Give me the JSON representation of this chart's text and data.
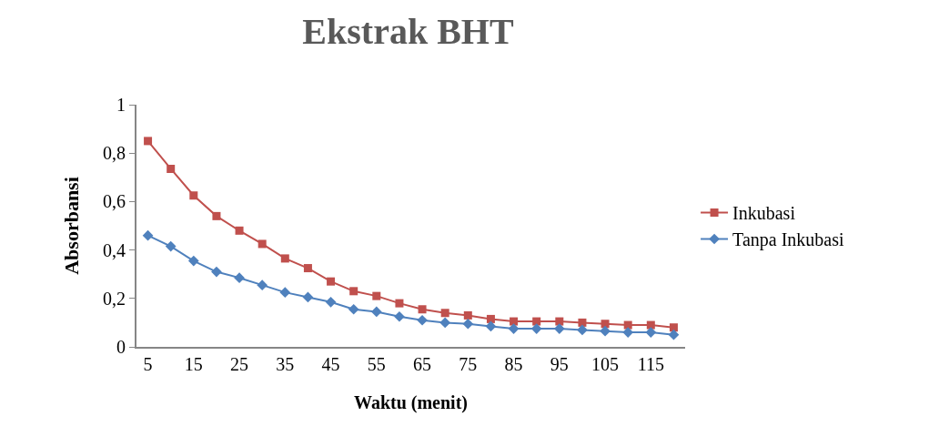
{
  "chart_data": {
    "type": "line",
    "title": "Ekstrak BHT",
    "xlabel": "Waktu (menit)",
    "ylabel": "Absorbansi",
    "categories": [
      "5",
      null,
      "15",
      null,
      "25",
      null,
      "35",
      null,
      "45",
      null,
      "55",
      null,
      "65",
      null,
      "75",
      null,
      "85",
      null,
      "95",
      null,
      "105",
      null,
      "115",
      null
    ],
    "series": [
      {
        "name": "Inkubasi",
        "color": "#c0504d",
        "marker": "square",
        "values": [
          0.85,
          0.735,
          0.625,
          0.54,
          0.48,
          0.425,
          0.365,
          0.325,
          0.27,
          0.23,
          0.21,
          0.18,
          0.155,
          0.14,
          0.13,
          0.115,
          0.105,
          0.105,
          0.105,
          0.1,
          0.095,
          0.09,
          0.09,
          0.08
        ]
      },
      {
        "name": "Tanpa Inkubasi",
        "color": "#4f81bd",
        "marker": "diamond",
        "values": [
          0.46,
          0.415,
          0.355,
          0.31,
          0.285,
          0.255,
          0.225,
          0.205,
          0.185,
          0.155,
          0.145,
          0.125,
          0.11,
          0.1,
          0.095,
          0.085,
          0.075,
          0.075,
          0.075,
          0.07,
          0.065,
          0.06,
          0.06,
          0.05
        ]
      }
    ],
    "ylim": [
      0,
      1
    ],
    "yticks": [
      0,
      {
        "value": 0.2,
        "label": "0,2"
      },
      {
        "value": 0.4,
        "label": "0,4"
      },
      {
        "value": 0.6,
        "label": "0,6"
      },
      {
        "value": 0.8,
        "label": "0,8"
      },
      1
    ],
    "legend": "right",
    "line_style": "solid"
  }
}
